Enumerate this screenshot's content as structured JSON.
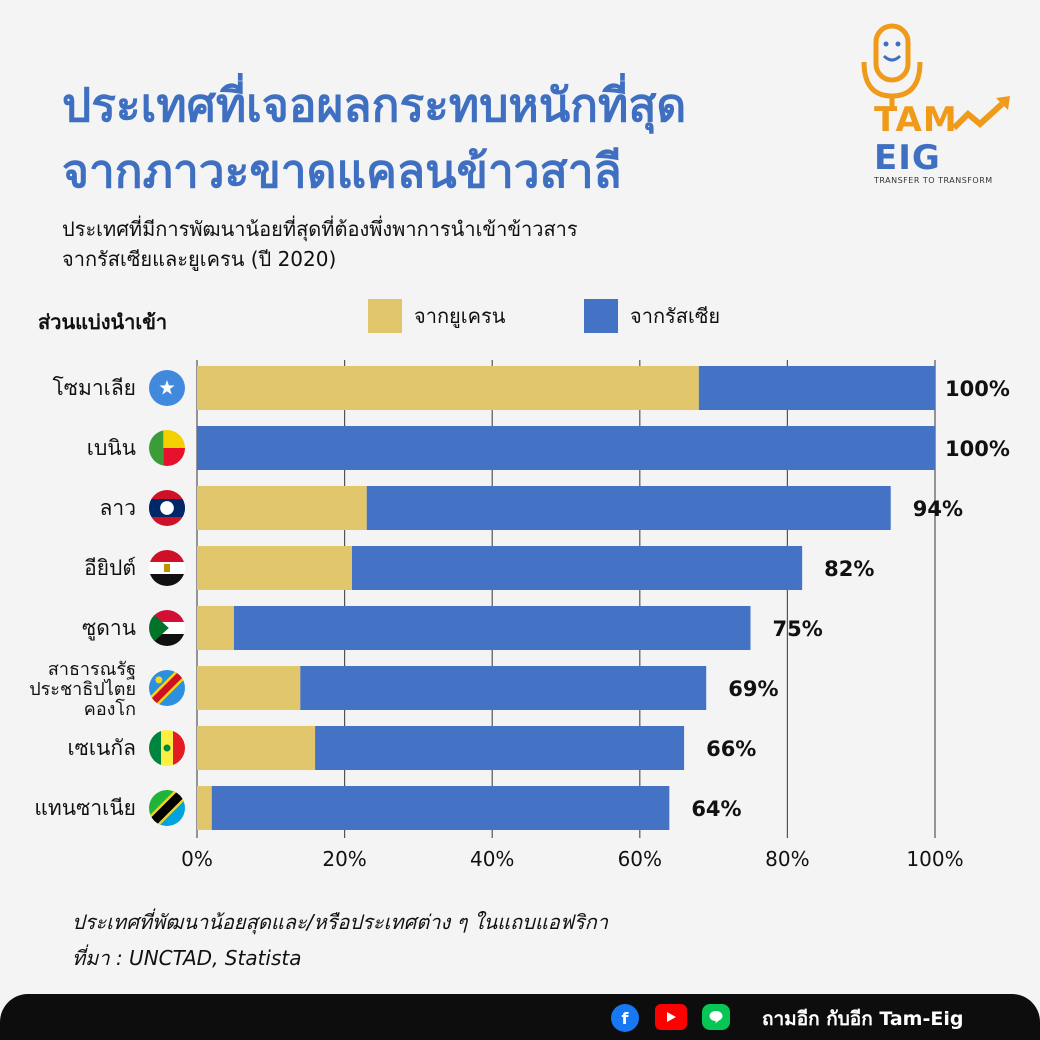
{
  "header": {
    "title_line1": "ประเทศที่เจอผลกระทบหนักที่สุด",
    "title_line2": "จากภาวะขาดแคลนข้าวสาลี",
    "subtitle_line1": "ประเทศที่มีการพัฒนาน้อยที่สุดที่ต้องพึ่งพาการนำเข้าข้าวสาร",
    "subtitle_line2": "จากรัสเซียและยูเครน (ปี 2020)"
  },
  "logo": {
    "word1": "TAM",
    "word2": "EIG",
    "tagline": "TRANSFER TO TRANSFORM",
    "icon": "microphone-icon"
  },
  "legend": {
    "share_label": "ส่วนแบ่งนำเข้า",
    "ukraine_label": "จากยูเครน",
    "russia_label": "จากรัสเซีย"
  },
  "colors": {
    "title": "#3f6fc0",
    "ukraine": "#e2c66b",
    "russia": "#4472c4",
    "grid": "#555555"
  },
  "chart_data": {
    "type": "bar",
    "orientation": "horizontal",
    "stacked": true,
    "categories": [
      [
        "โซมาเลีย"
      ],
      [
        "เบนิน"
      ],
      [
        "ลาว"
      ],
      [
        "อียิปต์"
      ],
      [
        "ซูดาน"
      ],
      [
        "สาธารณรัฐ",
        "ประชาธิปไตย",
        "คองโก"
      ],
      [
        "เซเนกัล"
      ],
      [
        "แทนซาเนีย"
      ]
    ],
    "series": [
      {
        "name": "จากยูเครน",
        "values": [
          68,
          0,
          23,
          21,
          5,
          14,
          16,
          2
        ]
      },
      {
        "name": "จากรัสเซีย",
        "values": [
          32,
          100,
          71,
          61,
          70,
          55,
          50,
          62
        ]
      }
    ],
    "totals": [
      100,
      100,
      94,
      82,
      75,
      69,
      66,
      64
    ],
    "total_labels": [
      "100%",
      "100%",
      "94%",
      "82%",
      "75%",
      "69%",
      "66%",
      "64%"
    ],
    "xlim": [
      0,
      100
    ],
    "xticks": [
      0,
      20,
      40,
      60,
      80,
      100
    ],
    "xtick_labels": [
      "0%",
      "20%",
      "40%",
      "60%",
      "80%",
      "100%"
    ],
    "grid": true,
    "flag_icons": [
      "somalia-flag-icon",
      "benin-flag-icon",
      "laos-flag-icon",
      "egypt-flag-icon",
      "sudan-flag-icon",
      "dr-congo-flag-icon",
      "senegal-flag-icon",
      "tanzania-flag-icon"
    ]
  },
  "footnote": {
    "line1": "ประเทศที่พัฒนาน้อยสุดและ/หรือประเทศต่าง ๆ ในแถบแอฟริกา",
    "line2": "ที่มา : UNCTAD, Statista"
  },
  "footer": {
    "facebook_icon": "facebook-icon",
    "youtube_icon": "youtube-icon",
    "line_icon": "line-icon",
    "text": "ถามอีก กับอีก Tam-Eig"
  }
}
